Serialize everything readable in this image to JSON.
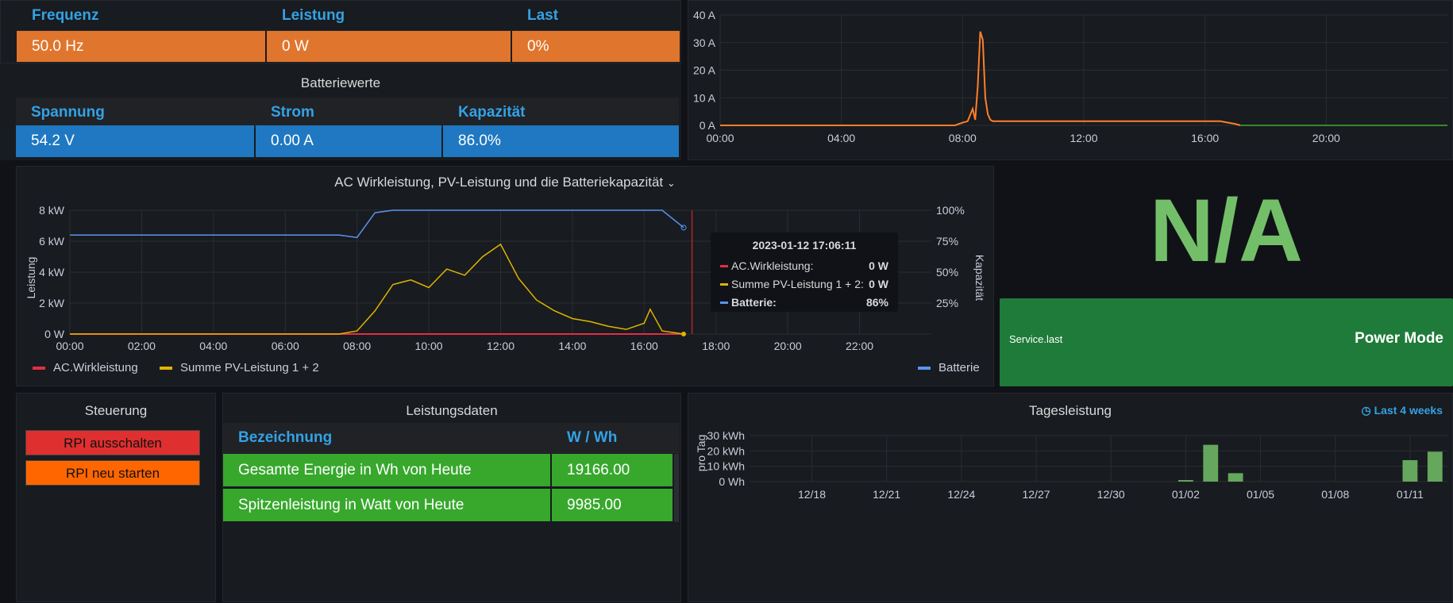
{
  "inverter": {
    "headers": [
      "Frequenz",
      "Leistung",
      "Last"
    ],
    "values": [
      "50.0 Hz",
      "0 W",
      "0%"
    ],
    "color": "#e0752d"
  },
  "battery": {
    "title": "Batteriewerte",
    "headers": [
      "Spannung",
      "Strom",
      "Kapazität"
    ],
    "values": [
      "54.2 V",
      "0.00 A",
      "86.0%"
    ],
    "color": "#1f78c1"
  },
  "current_chart": {
    "y_ticks": [
      "40 A",
      "30 A",
      "20 A",
      "10 A",
      "0 A"
    ],
    "x_ticks": [
      "00:00",
      "04:00",
      "08:00",
      "12:00",
      "16:00",
      "20:00"
    ]
  },
  "main_chart": {
    "title": "AC Wirkleistung, PV-Leistung und die Batteriekapazität",
    "ylabel": "Leistung",
    "y2label": "Kapazität",
    "y_ticks": [
      "8 kW",
      "6 kW",
      "4 kW",
      "2 kW",
      "0 W"
    ],
    "y2_ticks": [
      "100%",
      "75%",
      "50%",
      "25%"
    ],
    "x_ticks": [
      "00:00",
      "02:00",
      "04:00",
      "06:00",
      "08:00",
      "10:00",
      "12:00",
      "14:00",
      "16:00",
      "18:00",
      "20:00",
      "22:00"
    ],
    "legend": [
      "AC.Wirkleistung",
      "Summe PV-Leistung 1 + 2",
      "Batterie"
    ],
    "colors": {
      "ac": "#e02f44",
      "pv": "#e0b400",
      "bat": "#5794f2"
    },
    "tooltip": {
      "time": "2023-01-12 17:06:11",
      "rows": [
        {
          "label": "AC.Wirkleistung:",
          "value": "0 W",
          "color": "#e02f44"
        },
        {
          "label": "Summe PV-Leistung 1 + 2:",
          "value": "0 W",
          "color": "#e0b400"
        },
        {
          "label": "Batterie:",
          "value": "86%",
          "color": "#5794f2"
        }
      ]
    }
  },
  "status": {
    "value": "N/A",
    "color": "#73bf69",
    "service_label": "Service.last",
    "power_mode_label": "Power Mode",
    "tile_color": "#1f7b3a"
  },
  "control": {
    "title": "Steuerung",
    "shutdown_label": "RPI ausschalten",
    "restart_label": "RPI neu starten",
    "shutdown_color": "#e02f2f",
    "restart_color": "#ff6600"
  },
  "performance": {
    "title": "Leistungsdaten",
    "headers": [
      "Bezeichnung",
      "W / Wh"
    ],
    "rows": [
      {
        "name": "Gesamte Energie in Wh von Heute",
        "value": "19166.00"
      },
      {
        "name": "Spitzenleistung in Watt von Heute",
        "value": "9985.00"
      }
    ],
    "color": "#37a82c"
  },
  "daily": {
    "title": "Tagesleistung",
    "time_range": "Last 4 weeks",
    "ylabel": "pro Tag",
    "y_ticks": [
      "30 kWh",
      "20 kWh",
      "10 kWh",
      "0 Wh"
    ],
    "x_ticks": [
      "12/18",
      "12/21",
      "12/24",
      "12/27",
      "12/30",
      "01/02",
      "01/05",
      "01/08",
      "01/11"
    ]
  },
  "chart_data": [
    {
      "type": "line",
      "title": "",
      "ylim": [
        0,
        40
      ],
      "xlim": [
        "00:00",
        "24:00"
      ],
      "series": [
        {
          "color": "#ff7f2a",
          "x": [
            "00:00",
            "07:45",
            "08:00",
            "08:10",
            "08:20",
            "08:25",
            "08:30",
            "08:35",
            "08:40",
            "08:45",
            "08:50",
            "08:55",
            "09:00",
            "09:10",
            "09:30",
            "10:00",
            "12:00",
            "14:00",
            "16:00",
            "16:30",
            "17:00",
            "17:10"
          ],
          "values": [
            0,
            0,
            1,
            1.5,
            6,
            2,
            14,
            34,
            31,
            10,
            4,
            2,
            1.5,
            1.5,
            1.5,
            1.5,
            1.5,
            1.5,
            1.5,
            1.5,
            0.5,
            0
          ]
        },
        {
          "color": "#37872d",
          "x": [
            "17:10",
            "24:00"
          ],
          "values": [
            0,
            0
          ]
        }
      ]
    },
    {
      "type": "line",
      "title": "AC Wirkleistung, PV-Leistung und die Batteriekapazität",
      "ylabel": "Leistung",
      "y2label": "Kapazität",
      "ylim": [
        0,
        8000
      ],
      "y2lim": [
        0,
        100
      ],
      "x": [
        "00:00",
        "07:30",
        "08:00",
        "08:30",
        "09:00",
        "09:30",
        "10:00",
        "10:30",
        "11:00",
        "11:30",
        "12:00",
        "12:30",
        "13:00",
        "13:30",
        "14:00",
        "14:30",
        "15:00",
        "15:30",
        "16:00",
        "16:10",
        "16:30",
        "17:06"
      ],
      "series": [
        {
          "name": "AC.Wirkleistung",
          "axis": "left",
          "values": [
            0,
            0,
            0,
            0,
            0,
            0,
            0,
            0,
            0,
            0,
            0,
            0,
            0,
            0,
            0,
            0,
            0,
            0,
            0,
            0,
            0,
            0
          ]
        },
        {
          "name": "Summe PV-Leistung 1 + 2",
          "axis": "left",
          "values": [
            0,
            0,
            200,
            1500,
            3200,
            3500,
            3000,
            4200,
            3800,
            5000,
            5800,
            3600,
            2200,
            1500,
            1000,
            800,
            500,
            300,
            700,
            1600,
            200,
            0
          ]
        },
        {
          "name": "Batterie",
          "axis": "right",
          "values": [
            80,
            80,
            78,
            98,
            100,
            100,
            100,
            100,
            100,
            100,
            100,
            100,
            100,
            100,
            100,
            100,
            100,
            100,
            100,
            100,
            100,
            86
          ]
        }
      ]
    },
    {
      "type": "bar",
      "title": "Tagesleistung",
      "ylabel": "pro Tag",
      "ylim": [
        0,
        30
      ],
      "categories": [
        "01/02",
        "01/03",
        "01/04",
        "01/11",
        "01/12"
      ],
      "values": [
        1,
        24,
        5.5,
        14,
        19.5
      ]
    }
  ]
}
